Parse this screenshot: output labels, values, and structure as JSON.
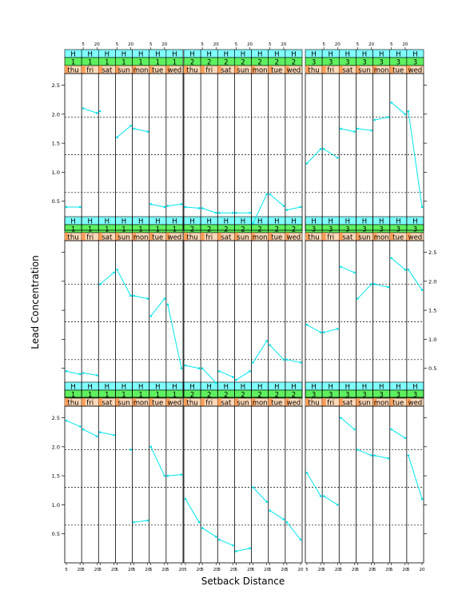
{
  "chart_data": {
    "type": "line",
    "xlabel": "Setback Distance",
    "ylabel": "Lead Concentration",
    "x": [
      5,
      20
    ],
    "x_tick_labels": [
      "5",
      "20"
    ],
    "ylim": [
      0,
      2.7
    ],
    "y_ticks": [
      0.5,
      1.0,
      1.5,
      2.0,
      2.5
    ],
    "y_tick_labels": [
      "0.5",
      "1.0",
      "1.5",
      "2.0",
      "2.5"
    ],
    "reference_lines": [
      0.65,
      1.3,
      1.95
    ],
    "grid": false,
    "strip_levels": {
      "top_row_label": "H",
      "days": [
        "thu",
        "fri",
        "sat",
        "sun",
        "mon",
        "tue",
        "wed"
      ],
      "groups": [
        "1",
        "2",
        "3"
      ]
    },
    "colors": {
      "line": "#00e5ee",
      "strip_h": "#80ffff",
      "strip_group": "#5ef05e",
      "strip_day": "#ff9f5a",
      "strip_day_light": "#ffd9b8",
      "reference_line": "#000000"
    },
    "panels": [
      {
        "row": 1,
        "col": 1,
        "group": "1",
        "series": [
          [
            2.45,
            2.35
          ],
          [
            2.3,
            2.18
          ],
          [
            2.25,
            2.2
          ],
          [
            null,
            1.95
          ],
          [
            0.7,
            0.73
          ],
          [
            2.0,
            1.5
          ],
          [
            1.5,
            1.52
          ]
        ]
      },
      {
        "row": 1,
        "col": 2,
        "group": "2",
        "series": [
          [
            1.1,
            0.7
          ],
          [
            0.6,
            0.45
          ],
          [
            0.4,
            0.3
          ],
          [
            0.2,
            0.25
          ],
          [
            1.3,
            1.05
          ],
          [
            0.9,
            0.75
          ],
          [
            0.7,
            0.4
          ]
        ]
      },
      {
        "row": 1,
        "col": 3,
        "group": "3",
        "series": [
          [
            1.55,
            1.15
          ],
          [
            1.15,
            1.0
          ],
          [
            2.5,
            2.3
          ],
          [
            1.95,
            1.85
          ],
          [
            1.85,
            1.8
          ],
          [
            2.3,
            2.15
          ],
          [
            1.85,
            1.1
          ]
        ]
      },
      {
        "row": 2,
        "col": 1,
        "group": "1",
        "series": [
          [
            0.45,
            0.4
          ],
          [
            0.42,
            0.38
          ],
          [
            1.95,
            2.15
          ],
          [
            2.2,
            1.75
          ],
          [
            1.75,
            1.7
          ],
          [
            1.4,
            1.7
          ],
          [
            1.6,
            0.5
          ]
        ]
      },
      {
        "row": 2,
        "col": 2,
        "group": "2",
        "series": [
          [
            0.55,
            0.5
          ],
          [
            0.5,
            0.25
          ],
          [
            0.45,
            0.35
          ],
          [
            0.3,
            0.45
          ],
          [
            0.6,
            0.97
          ],
          [
            0.9,
            0.65
          ],
          [
            0.65,
            0.6
          ]
        ]
      },
      {
        "row": 2,
        "col": 3,
        "group": "3",
        "series": [
          [
            1.25,
            1.12
          ],
          [
            1.12,
            1.18
          ],
          [
            2.25,
            2.15
          ],
          [
            1.7,
            1.95
          ],
          [
            1.95,
            1.9
          ],
          [
            2.4,
            2.2
          ],
          [
            2.2,
            1.85
          ]
        ]
      },
      {
        "row": 3,
        "col": 1,
        "group": "1",
        "series": [
          [
            0.4,
            0.4
          ],
          [
            2.1,
            2.02
          ],
          [
            2.05,
            null
          ],
          [
            1.6,
            1.8
          ],
          [
            1.75,
            1.7
          ],
          [
            0.45,
            0.4
          ],
          [
            0.42,
            0.45
          ]
        ]
      },
      {
        "row": 3,
        "col": 2,
        "group": "2",
        "series": [
          [
            0.4,
            0.38
          ],
          [
            0.38,
            0.3
          ],
          [
            0.3,
            0.3
          ],
          [
            0.3,
            0.3
          ],
          [
            0.12,
            0.62
          ],
          [
            0.62,
            0.42
          ],
          [
            0.35,
            0.4
          ]
        ]
      },
      {
        "row": 3,
        "col": 3,
        "group": "3",
        "series": [
          [
            1.15,
            1.4
          ],
          [
            1.4,
            1.25
          ],
          [
            1.75,
            1.7
          ],
          [
            1.75,
            1.72
          ],
          [
            1.9,
            1.95
          ],
          [
            2.2,
            2.0
          ],
          [
            2.05,
            0.4
          ]
        ]
      }
    ]
  }
}
